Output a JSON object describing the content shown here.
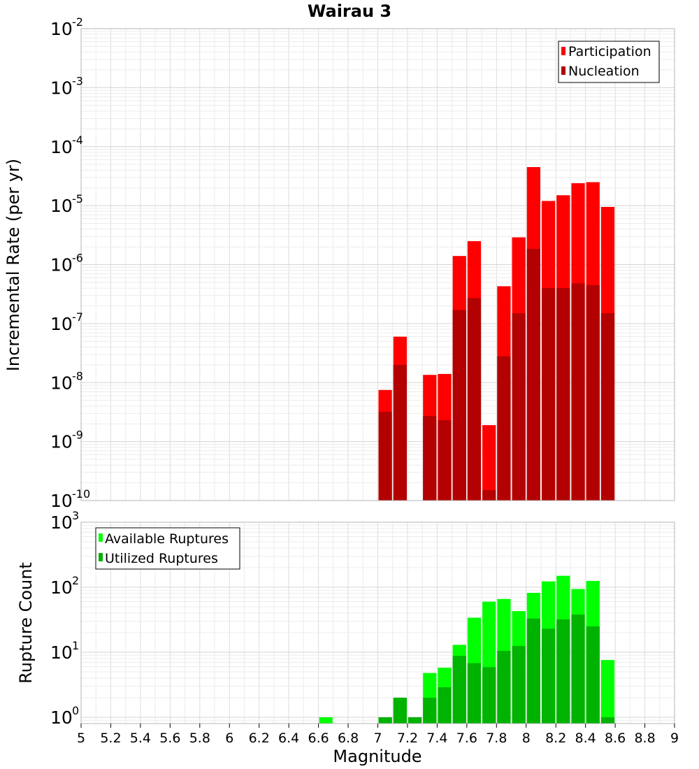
{
  "chart_data": [
    {
      "type": "bar",
      "title": "Wairau 3",
      "xlabel": "Magnitude",
      "ylabel": "Incremental Rate (per yr)",
      "yscale": "log",
      "xlim": [
        5,
        9
      ],
      "ylim": [
        1e-10,
        0.01
      ],
      "y_tick_exponents": [
        -2,
        -3,
        -4,
        -5,
        -6,
        -7,
        -8,
        -9,
        -10
      ],
      "legend_position": "top-right",
      "grid": true,
      "bin_width": 0.1,
      "series": [
        {
          "name": "Participation",
          "color": "#ff0000",
          "x": [
            7.05,
            7.15,
            7.35,
            7.45,
            7.55,
            7.65,
            7.75,
            7.85,
            7.95,
            8.05,
            8.15,
            8.25,
            8.35,
            8.45,
            8.55
          ],
          "values": [
            7.5e-09,
            6e-08,
            1.35e-08,
            1.4e-08,
            1.4e-06,
            2.5e-06,
            1.9e-09,
            4.3e-07,
            2.9e-06,
            4.5e-05,
            1.2e-05,
            1.5e-05,
            2.4e-05,
            2.5e-05,
            9.5e-06
          ]
        },
        {
          "name": "Nucleation",
          "color": "#b30000",
          "x": [
            7.05,
            7.15,
            7.35,
            7.45,
            7.55,
            7.65,
            7.75,
            7.85,
            7.95,
            8.05,
            8.15,
            8.25,
            8.35,
            8.45,
            8.55
          ],
          "values": [
            3.2e-09,
            2e-08,
            2.7e-09,
            2.3e-09,
            1.7e-07,
            2.7e-07,
            1.5e-10,
            2.8e-08,
            1.5e-07,
            1.85e-06,
            4e-07,
            4e-07,
            4.8e-07,
            4.5e-07,
            1.5e-07
          ]
        }
      ]
    },
    {
      "type": "bar",
      "xlabel": "Magnitude",
      "ylabel": "Rupture Count",
      "yscale": "log",
      "xlim": [
        5,
        9
      ],
      "ylim": [
        0.8,
        1000
      ],
      "y_tick_exponents": [
        3,
        2,
        1,
        0
      ],
      "x_ticks": [
        "5",
        "5.2",
        "5.4",
        "5.6",
        "5.8",
        "6",
        "6.2",
        "6.4",
        "6.6",
        "6.8",
        "7",
        "7.2",
        "7.4",
        "7.6",
        "7.8",
        "8",
        "8.2",
        "8.4",
        "8.6",
        "8.8",
        "9"
      ],
      "legend_position": "top-left",
      "grid": true,
      "bin_width": 0.1,
      "series": [
        {
          "name": "Available Ruptures",
          "color": "#00ff00",
          "x": [
            6.65,
            7.05,
            7.15,
            7.25,
            7.35,
            7.45,
            7.55,
            7.65,
            7.75,
            7.85,
            7.95,
            8.05,
            8.15,
            8.25,
            8.35,
            8.45,
            8.55
          ],
          "values": [
            1,
            1,
            2,
            1,
            4.8,
            5.8,
            13,
            34,
            60,
            66,
            43,
            82,
            123,
            150,
            94,
            125,
            7.6
          ]
        },
        {
          "name": "Utilized Ruptures",
          "color": "#00b300",
          "x": [
            7.05,
            7.15,
            7.25,
            7.35,
            7.45,
            7.55,
            7.65,
            7.75,
            7.85,
            7.95,
            8.05,
            8.15,
            8.25,
            8.35,
            8.45,
            8.55
          ],
          "values": [
            1,
            2,
            1,
            2,
            2.9,
            8.8,
            6.8,
            5.9,
            10.5,
            12.5,
            33,
            23,
            32,
            38,
            25,
            1
          ]
        }
      ]
    }
  ]
}
